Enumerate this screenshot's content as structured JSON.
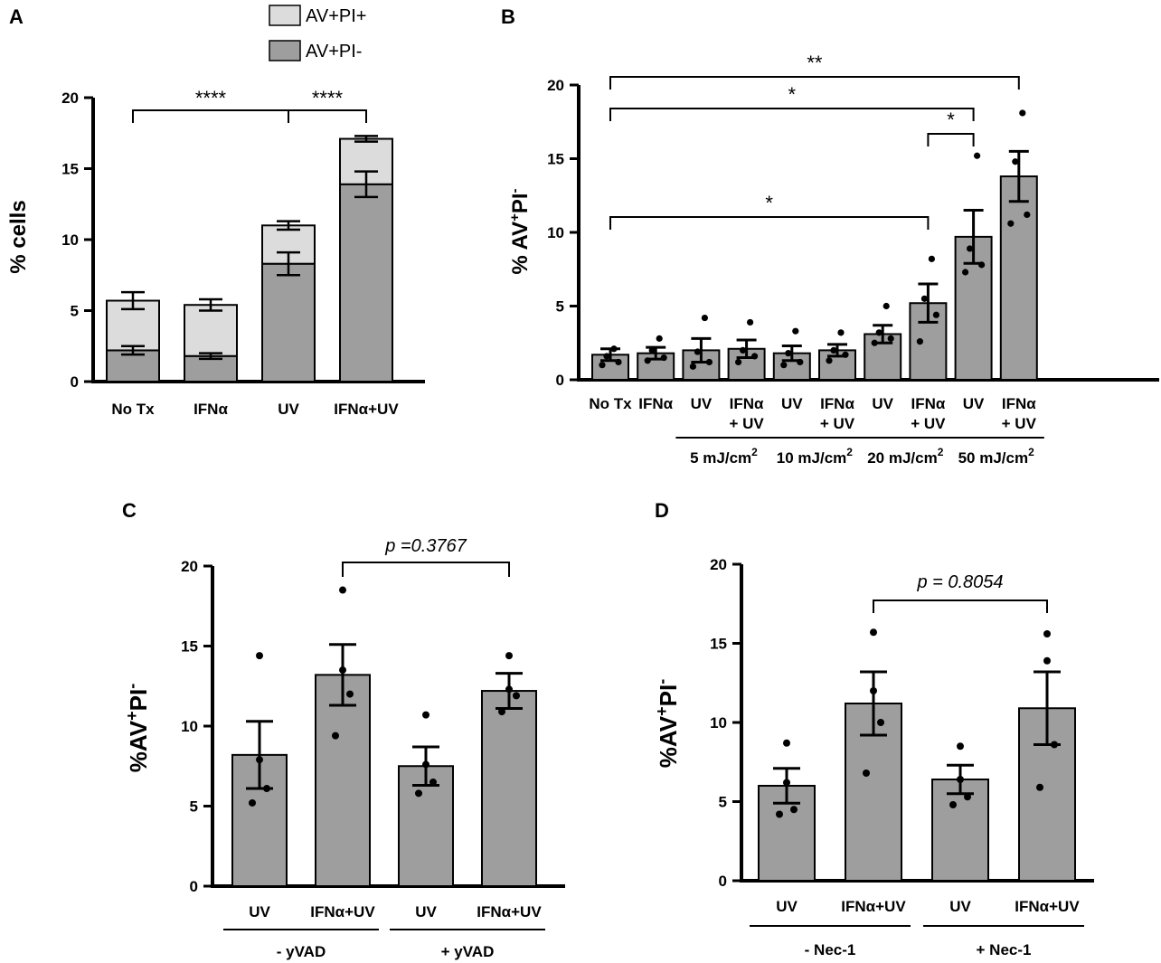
{
  "colors": {
    "bar_dark": "#9e9e9e",
    "bar_light": "#dcdcdc",
    "axis": "#000000",
    "dot": "#000000"
  },
  "chart_data": [
    {
      "panel": "A",
      "type": "bar",
      "stacked": true,
      "categories": [
        "No Tx",
        "IFNα",
        "UV",
        "IFNα+UV"
      ],
      "series": [
        {
          "name": "AV+PI-",
          "color": "#9e9e9e",
          "values": [
            2.2,
            1.8,
            8.3,
            13.9
          ],
          "err": [
            0.3,
            0.2,
            0.8,
            0.9
          ]
        },
        {
          "name": "AV+PI+",
          "color": "#dcdcdc",
          "values": [
            3.5,
            3.6,
            2.7,
            3.2
          ],
          "err": [
            0.6,
            0.4,
            0.3,
            0.2
          ]
        }
      ],
      "ylabel": "% cells",
      "ylim": [
        0,
        20
      ],
      "yticks": [
        0,
        5,
        10,
        15,
        20
      ],
      "legend": [
        "AV+PI+",
        "AV+PI-"
      ],
      "legend_position": "top",
      "brackets": [
        {
          "from": 0,
          "to": 2,
          "label": "****"
        },
        {
          "from": 2,
          "to": 3,
          "label": "****"
        }
      ]
    },
    {
      "panel": "B",
      "type": "bar",
      "categories": [
        "No Tx",
        "IFNα",
        "UV",
        "IFNα\n+ UV",
        "UV",
        "IFNα\n+ UV",
        "UV",
        "IFNα\n+ UV",
        "UV",
        "IFNα\n+ UV"
      ],
      "values": [
        1.7,
        1.8,
        2.0,
        2.1,
        1.8,
        2.0,
        3.1,
        5.2,
        9.7,
        13.8
      ],
      "err": [
        0.4,
        0.4,
        0.8,
        0.6,
        0.5,
        0.4,
        0.6,
        1.3,
        1.8,
        1.7
      ],
      "points": [
        [
          1.0,
          1.2,
          1.6,
          2.1
        ],
        [
          1.3,
          1.5,
          2.0,
          2.8
        ],
        [
          0.9,
          1.2,
          1.9,
          4.2
        ],
        [
          1.2,
          1.6,
          2.0,
          3.9
        ],
        [
          1.0,
          1.2,
          1.8,
          3.3
        ],
        [
          1.3,
          1.7,
          2.0,
          3.2
        ],
        [
          2.5,
          2.8,
          3.2,
          5.0
        ],
        [
          2.6,
          4.4,
          5.5,
          8.2
        ],
        [
          7.3,
          7.8,
          8.9,
          15.2
        ],
        [
          10.6,
          11.2,
          14.8,
          18.1
        ]
      ],
      "groups": [
        {
          "label": "5 mJ/cm",
          "sup": "2",
          "from": 2,
          "to": 3
        },
        {
          "label": "10 mJ/cm",
          "sup": "2",
          "from": 4,
          "to": 5
        },
        {
          "label": "20 mJ/cm",
          "sup": "2",
          "from": 6,
          "to": 7
        },
        {
          "label": "50 mJ/cm",
          "sup": "2",
          "from": 8,
          "to": 9
        }
      ],
      "ylabel": "% AV",
      "ylabel_sup1": "+",
      "ylabel_mid": "PI",
      "ylabel_sup2": "-",
      "ylim": [
        0,
        20
      ],
      "yticks": [
        0,
        5,
        10,
        15,
        20
      ],
      "brackets": [
        {
          "from": 0,
          "to": 9,
          "label": "**",
          "level": 3
        },
        {
          "from": 0,
          "to": 8,
          "label": "*",
          "level": 2
        },
        {
          "from": 7,
          "to": 8,
          "label": "*",
          "level": 1
        },
        {
          "from": 0,
          "to": 7,
          "label": "*",
          "level": 0
        }
      ]
    },
    {
      "panel": "C",
      "type": "bar",
      "categories": [
        "UV",
        "IFNα+UV",
        "UV",
        "IFNα+UV"
      ],
      "values": [
        8.2,
        13.2,
        7.5,
        12.2
      ],
      "err": [
        2.1,
        1.9,
        1.2,
        1.1
      ],
      "points": [
        [
          5.2,
          6.1,
          7.9,
          14.4
        ],
        [
          9.4,
          12.0,
          13.5,
          18.5
        ],
        [
          5.8,
          6.5,
          7.6,
          10.7
        ],
        [
          10.9,
          11.9,
          12.3,
          14.4
        ]
      ],
      "groups": [
        {
          "label": "- yVAD",
          "from": 0,
          "to": 1
        },
        {
          "label": "+ yVAD",
          "from": 2,
          "to": 3
        }
      ],
      "ylabel": "%AV",
      "ylabel_sup1": "+",
      "ylabel_mid": "PI",
      "ylabel_sup2": "-",
      "ylim": [
        0,
        20
      ],
      "yticks": [
        0,
        5,
        10,
        15,
        20
      ],
      "brackets": [
        {
          "from": 1,
          "to": 3,
          "label": "p =0.3767"
        }
      ]
    },
    {
      "panel": "D",
      "type": "bar",
      "categories": [
        "UV",
        "IFNα+UV",
        "UV",
        "IFNα+UV"
      ],
      "values": [
        6.0,
        11.2,
        6.4,
        10.9
      ],
      "err": [
        1.1,
        2.0,
        0.9,
        2.3
      ],
      "points": [
        [
          4.2,
          4.5,
          6.2,
          8.7
        ],
        [
          6.8,
          10.0,
          12.0,
          15.7
        ],
        [
          4.8,
          5.3,
          6.4,
          8.5
        ],
        [
          5.9,
          8.6,
          13.9,
          15.6
        ]
      ],
      "groups": [
        {
          "label": "- Nec-1",
          "from": 0,
          "to": 1
        },
        {
          "label": "+ Nec-1",
          "from": 2,
          "to": 3
        }
      ],
      "ylabel": "%AV",
      "ylabel_sup1": "+",
      "ylabel_mid": "PI",
      "ylabel_sup2": "-",
      "ylim": [
        0,
        20
      ],
      "yticks": [
        0,
        5,
        10,
        15,
        20
      ],
      "brackets": [
        {
          "from": 1,
          "to": 3,
          "label": "p =  0.8054"
        }
      ]
    }
  ]
}
